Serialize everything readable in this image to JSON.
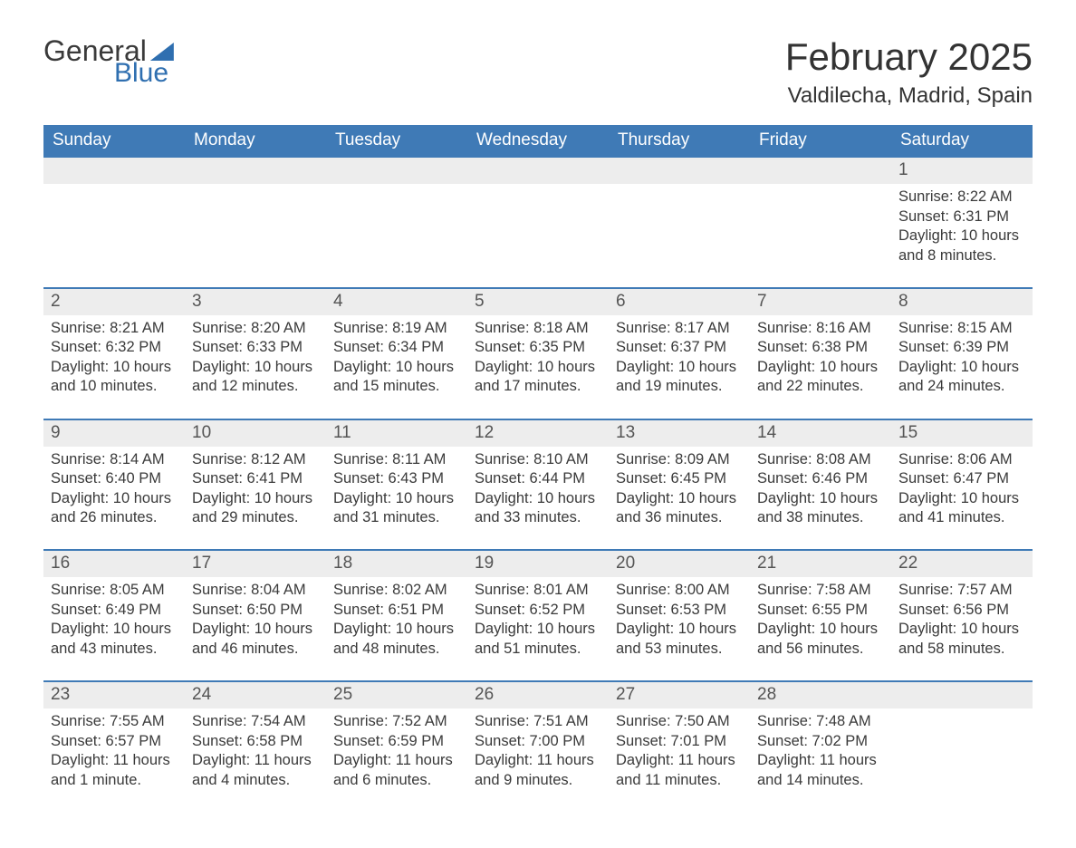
{
  "logo": {
    "word1": "General",
    "word2": "Blue"
  },
  "title": "February 2025",
  "location": "Valdilecha, Madrid, Spain",
  "colors": {
    "header_bg": "#3f7ab6",
    "header_text": "#ffffff",
    "daynum_bg": "#ededed",
    "rule": "#3f7ab6",
    "logo_blue": "#2f6fb0",
    "text": "#3a3a3a"
  },
  "weekdays": [
    "Sunday",
    "Monday",
    "Tuesday",
    "Wednesday",
    "Thursday",
    "Friday",
    "Saturday"
  ],
  "first_weekday_index": 6,
  "days": [
    {
      "n": 1,
      "sunrise": "8:22 AM",
      "sunset": "6:31 PM",
      "daylight": "10 hours and 8 minutes."
    },
    {
      "n": 2,
      "sunrise": "8:21 AM",
      "sunset": "6:32 PM",
      "daylight": "10 hours and 10 minutes."
    },
    {
      "n": 3,
      "sunrise": "8:20 AM",
      "sunset": "6:33 PM",
      "daylight": "10 hours and 12 minutes."
    },
    {
      "n": 4,
      "sunrise": "8:19 AM",
      "sunset": "6:34 PM",
      "daylight": "10 hours and 15 minutes."
    },
    {
      "n": 5,
      "sunrise": "8:18 AM",
      "sunset": "6:35 PM",
      "daylight": "10 hours and 17 minutes."
    },
    {
      "n": 6,
      "sunrise": "8:17 AM",
      "sunset": "6:37 PM",
      "daylight": "10 hours and 19 minutes."
    },
    {
      "n": 7,
      "sunrise": "8:16 AM",
      "sunset": "6:38 PM",
      "daylight": "10 hours and 22 minutes."
    },
    {
      "n": 8,
      "sunrise": "8:15 AM",
      "sunset": "6:39 PM",
      "daylight": "10 hours and 24 minutes."
    },
    {
      "n": 9,
      "sunrise": "8:14 AM",
      "sunset": "6:40 PM",
      "daylight": "10 hours and 26 minutes."
    },
    {
      "n": 10,
      "sunrise": "8:12 AM",
      "sunset": "6:41 PM",
      "daylight": "10 hours and 29 minutes."
    },
    {
      "n": 11,
      "sunrise": "8:11 AM",
      "sunset": "6:43 PM",
      "daylight": "10 hours and 31 minutes."
    },
    {
      "n": 12,
      "sunrise": "8:10 AM",
      "sunset": "6:44 PM",
      "daylight": "10 hours and 33 minutes."
    },
    {
      "n": 13,
      "sunrise": "8:09 AM",
      "sunset": "6:45 PM",
      "daylight": "10 hours and 36 minutes."
    },
    {
      "n": 14,
      "sunrise": "8:08 AM",
      "sunset": "6:46 PM",
      "daylight": "10 hours and 38 minutes."
    },
    {
      "n": 15,
      "sunrise": "8:06 AM",
      "sunset": "6:47 PM",
      "daylight": "10 hours and 41 minutes."
    },
    {
      "n": 16,
      "sunrise": "8:05 AM",
      "sunset": "6:49 PM",
      "daylight": "10 hours and 43 minutes."
    },
    {
      "n": 17,
      "sunrise": "8:04 AM",
      "sunset": "6:50 PM",
      "daylight": "10 hours and 46 minutes."
    },
    {
      "n": 18,
      "sunrise": "8:02 AM",
      "sunset": "6:51 PM",
      "daylight": "10 hours and 48 minutes."
    },
    {
      "n": 19,
      "sunrise": "8:01 AM",
      "sunset": "6:52 PM",
      "daylight": "10 hours and 51 minutes."
    },
    {
      "n": 20,
      "sunrise": "8:00 AM",
      "sunset": "6:53 PM",
      "daylight": "10 hours and 53 minutes."
    },
    {
      "n": 21,
      "sunrise": "7:58 AM",
      "sunset": "6:55 PM",
      "daylight": "10 hours and 56 minutes."
    },
    {
      "n": 22,
      "sunrise": "7:57 AM",
      "sunset": "6:56 PM",
      "daylight": "10 hours and 58 minutes."
    },
    {
      "n": 23,
      "sunrise": "7:55 AM",
      "sunset": "6:57 PM",
      "daylight": "11 hours and 1 minute."
    },
    {
      "n": 24,
      "sunrise": "7:54 AM",
      "sunset": "6:58 PM",
      "daylight": "11 hours and 4 minutes."
    },
    {
      "n": 25,
      "sunrise": "7:52 AM",
      "sunset": "6:59 PM",
      "daylight": "11 hours and 6 minutes."
    },
    {
      "n": 26,
      "sunrise": "7:51 AM",
      "sunset": "7:00 PM",
      "daylight": "11 hours and 9 minutes."
    },
    {
      "n": 27,
      "sunrise": "7:50 AM",
      "sunset": "7:01 PM",
      "daylight": "11 hours and 11 minutes."
    },
    {
      "n": 28,
      "sunrise": "7:48 AM",
      "sunset": "7:02 PM",
      "daylight": "11 hours and 14 minutes."
    }
  ],
  "labels": {
    "sunrise": "Sunrise:",
    "sunset": "Sunset:",
    "daylight": "Daylight:"
  }
}
